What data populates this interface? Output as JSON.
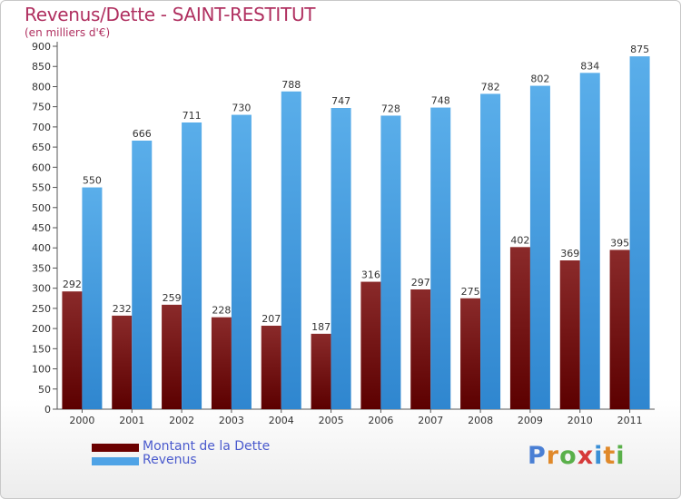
{
  "header": {
    "title": "Revenus/Dette - SAINT-RESTITUT",
    "subtitle": "(en milliers d'€)"
  },
  "chart_data": {
    "type": "bar",
    "categories": [
      "2000",
      "2001",
      "2002",
      "2003",
      "2004",
      "2005",
      "2006",
      "2007",
      "2008",
      "2009",
      "2010",
      "2011"
    ],
    "series": [
      {
        "name": "Montant de la Dette",
        "values": [
          292,
          232,
          259,
          228,
          207,
          187,
          316,
          297,
          275,
          402,
          369,
          395
        ],
        "color": "#7a1a1a"
      },
      {
        "name": "Revenus",
        "values": [
          550,
          666,
          711,
          730,
          788,
          747,
          728,
          748,
          782,
          802,
          834,
          875
        ],
        "color": "#4fa3e6"
      }
    ],
    "ylim": [
      0,
      900
    ],
    "ytick_step": 50,
    "grid": false,
    "legend_position": "bottom-left",
    "title": "Revenus/Dette - SAINT-RESTITUT",
    "ylabel": "(en milliers d'€)",
    "xlabel": ""
  },
  "legend": {
    "items": [
      {
        "label": "Montant de la Dette",
        "color": "#6b0000",
        "text_color": "#4a5acd"
      },
      {
        "label": "Revenus",
        "color": "#4fa3e6",
        "text_color": "#4a5acd"
      }
    ]
  },
  "logo": {
    "text": "Proxiti",
    "letter_colors": [
      "#4a7fd4",
      "#e0892a",
      "#5ab04a",
      "#d63a3a",
      "#3a8fd6",
      "#e0892a",
      "#5ab04a"
    ]
  }
}
